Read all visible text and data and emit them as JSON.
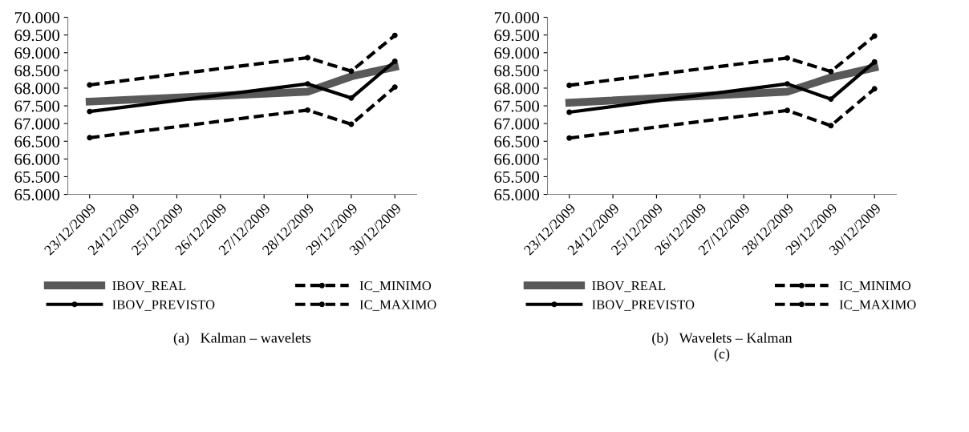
{
  "chart_data": [
    {
      "type": "line",
      "x": [
        "2009-12-23",
        "2009-12-28",
        "2009-12-29",
        "2009-12-30"
      ],
      "xlim": [
        "2009-12-22T12:00",
        "2009-12-30T12:00"
      ],
      "xticks": [
        {
          "value": "2009-12-23",
          "label": "23/12/2009"
        },
        {
          "value": "2009-12-24",
          "label": "24/12/2009"
        },
        {
          "value": "2009-12-25",
          "label": "25/12/2009"
        },
        {
          "value": "2009-12-26",
          "label": "26/12/2009"
        },
        {
          "value": "2009-12-27",
          "label": "27/12/2009"
        },
        {
          "value": "2009-12-28",
          "label": "28/12/2009"
        },
        {
          "value": "2009-12-29",
          "label": "29/12/2009"
        },
        {
          "value": "2009-12-30",
          "label": "30/12/2009"
        }
      ],
      "ylim": [
        65000,
        70000
      ],
      "yticks": [
        {
          "value": 65000,
          "label": "65.000"
        },
        {
          "value": 65500,
          "label": "65.500"
        },
        {
          "value": 66000,
          "label": "66.000"
        },
        {
          "value": 66500,
          "label": "66.500"
        },
        {
          "value": 67000,
          "label": "67.000"
        },
        {
          "value": 67500,
          "label": "67.500"
        },
        {
          "value": 68000,
          "label": "68.000"
        },
        {
          "value": 68500,
          "label": "68.500"
        },
        {
          "value": 69000,
          "label": "69.000"
        },
        {
          "value": 69500,
          "label": "69.500"
        },
        {
          "value": 70000,
          "label": "70.000"
        }
      ],
      "grid": false,
      "legend": "bottom",
      "marker": "circle",
      "series": [
        {
          "name": "IBOV_REAL",
          "color": "#595959",
          "values": [
            67620,
            67900,
            68330,
            68600
          ]
        },
        {
          "name": "IBOV_PREVISTO",
          "color": "#000000",
          "values": [
            67340,
            68120,
            67720,
            68760
          ]
        },
        {
          "name": "IC_MINIMO",
          "color": "#000000",
          "line_style": "dashed",
          "values": [
            66600,
            67380,
            66980,
            68030
          ]
        },
        {
          "name": "IC_MAXIMO",
          "color": "#000000",
          "line_style": "dashed",
          "values": [
            68090,
            68860,
            68480,
            69490
          ]
        }
      ],
      "annotations": [
        "(a)   Kalman – wavelets"
      ]
    },
    {
      "type": "line",
      "x": [
        "2009-12-23",
        "2009-12-28",
        "2009-12-29",
        "2009-12-30"
      ],
      "xlim": [
        "2009-12-22T12:00",
        "2009-12-30T12:00"
      ],
      "xticks": [
        {
          "value": "2009-12-23",
          "label": "23/12/2009"
        },
        {
          "value": "2009-12-24",
          "label": "24/12/2009"
        },
        {
          "value": "2009-12-25",
          "label": "25/12/2009"
        },
        {
          "value": "2009-12-26",
          "label": "26/12/2009"
        },
        {
          "value": "2009-12-27",
          "label": "27/12/2009"
        },
        {
          "value": "2009-12-28",
          "label": "28/12/2009"
        },
        {
          "value": "2009-12-29",
          "label": "29/12/2009"
        },
        {
          "value": "2009-12-30",
          "label": "30/12/2009"
        }
      ],
      "ylim": [
        65000,
        70000
      ],
      "yticks": [
        {
          "value": 65000,
          "label": "65.000"
        },
        {
          "value": 65500,
          "label": "65.500"
        },
        {
          "value": 66000,
          "label": "66.000"
        },
        {
          "value": 66500,
          "label": "66.500"
        },
        {
          "value": 67000,
          "label": "67.000"
        },
        {
          "value": 67500,
          "label": "67.500"
        },
        {
          "value": 68000,
          "label": "68.000"
        },
        {
          "value": 68500,
          "label": "68.500"
        },
        {
          "value": 69000,
          "label": "69.000"
        },
        {
          "value": 69500,
          "label": "69.500"
        },
        {
          "value": 70000,
          "label": "70.000"
        }
      ],
      "grid": false,
      "legend": "bottom",
      "marker": "circle",
      "series": [
        {
          "name": "IBOV_REAL",
          "color": "#595959",
          "values": [
            67590,
            67900,
            68300,
            68580
          ]
        },
        {
          "name": "IBOV_PREVISTO",
          "color": "#000000",
          "values": [
            67320,
            68120,
            67690,
            68740
          ]
        },
        {
          "name": "IC_MINIMO",
          "color": "#000000",
          "line_style": "dashed",
          "values": [
            66590,
            67370,
            66940,
            67980
          ]
        },
        {
          "name": "IC_MAXIMO",
          "color": "#000000",
          "line_style": "dashed",
          "values": [
            68080,
            68850,
            68470,
            69470
          ]
        }
      ],
      "annotations": [
        "(b)   Wavelets – Kalman",
        "(c)"
      ]
    }
  ]
}
